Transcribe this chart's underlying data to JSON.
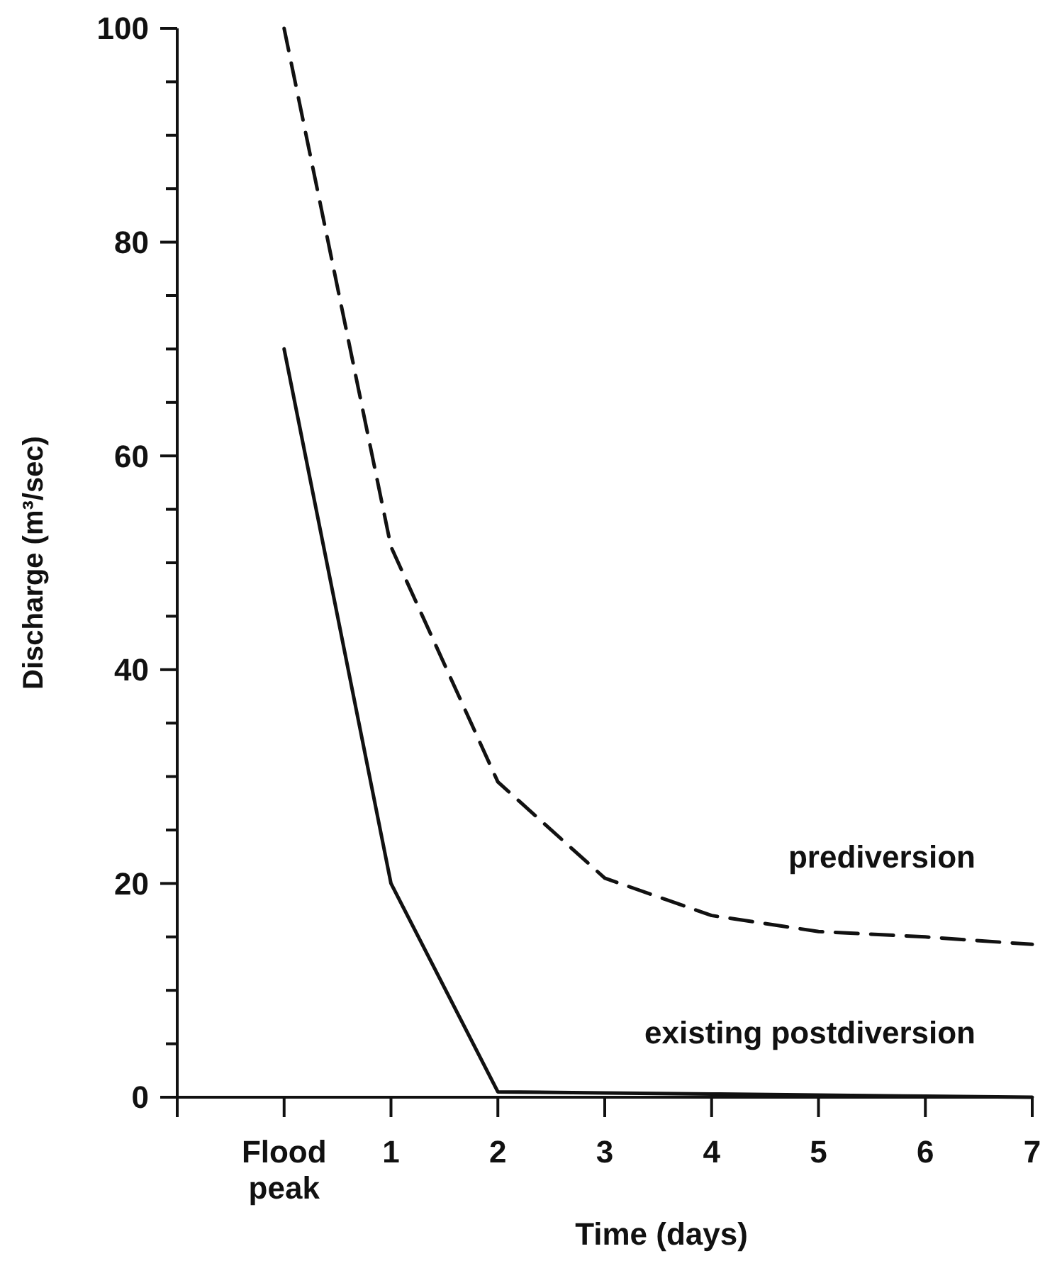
{
  "chart_data": {
    "type": "line",
    "xlabel": "Time (days)",
    "ylabel": "Discharge (m³/sec)",
    "x": [
      0,
      1,
      2,
      3,
      4,
      5,
      6,
      7
    ],
    "xlim": [
      -1,
      7
    ],
    "xticks": [
      {
        "value": -1,
        "label": null
      },
      {
        "value": 0,
        "label": "Flood peak"
      },
      1,
      2,
      3,
      4,
      5,
      6,
      7
    ],
    "ylim": [
      0,
      100
    ],
    "yticks": [
      0,
      {
        "value": 5,
        "label": null
      },
      {
        "value": 10,
        "label": null
      },
      {
        "value": 15,
        "label": null
      },
      20,
      {
        "value": 25,
        "label": null
      },
      {
        "value": 30,
        "label": null
      },
      {
        "value": 35,
        "label": null
      },
      40,
      {
        "value": 45,
        "label": null
      },
      {
        "value": 50,
        "label": null
      },
      {
        "value": 55,
        "label": null
      },
      60,
      {
        "value": 65,
        "label": null
      },
      {
        "value": 70,
        "label": null
      },
      {
        "value": 75,
        "label": null
      },
      80,
      {
        "value": 85,
        "label": null
      },
      {
        "value": 90,
        "label": null
      },
      {
        "value": 95,
        "label": null
      },
      100
    ],
    "marker": "none",
    "series": [
      {
        "name": "prediversion",
        "color": "#111111",
        "line_style": "dashed",
        "values": [
          100,
          51.5,
          29.5,
          20.5,
          17,
          15.5,
          15,
          14.3
        ]
      },
      {
        "name": "existing postdiversion",
        "color": "#111111",
        "line_style": "solid",
        "values": [
          70,
          20,
          0.5,
          0.4,
          0.3,
          0.2,
          0.1,
          0
        ]
      }
    ]
  }
}
